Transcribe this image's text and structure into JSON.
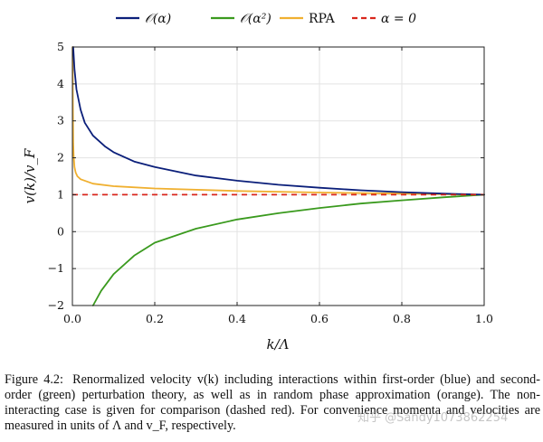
{
  "chart_data": {
    "type": "line",
    "title": "",
    "xlabel": "k/Λ",
    "ylabel": "v(k)/v_F",
    "xlim": [
      0.0,
      1.0
    ],
    "ylim": [
      -2,
      5
    ],
    "xticks": [
      0.0,
      0.2,
      0.4,
      0.6,
      0.8,
      1.0
    ],
    "xtick_labels": [
      "0.0",
      "0.2",
      "0.4",
      "0.6",
      "0.8",
      "1.0"
    ],
    "yticks": [
      -2,
      -1,
      0,
      1,
      2,
      3,
      4,
      5
    ],
    "ytick_labels": [
      "−2",
      "−1",
      "0",
      "1",
      "2",
      "3",
      "4",
      "5"
    ],
    "grid": true,
    "legend_position": "top-center",
    "series": [
      {
        "name": "𝒪(α)",
        "color": "#0b1f7a",
        "style": "solid",
        "x": [
          0.002,
          0.005,
          0.01,
          0.02,
          0.03,
          0.05,
          0.08,
          0.1,
          0.15,
          0.2,
          0.3,
          0.4,
          0.5,
          0.6,
          0.7,
          0.8,
          0.9,
          1.0
        ],
        "y": [
          5.0,
          4.4,
          3.85,
          3.3,
          2.95,
          2.6,
          2.3,
          2.15,
          1.9,
          1.75,
          1.52,
          1.38,
          1.27,
          1.19,
          1.12,
          1.07,
          1.03,
          1.0
        ]
      },
      {
        "name": "𝒪(α²)",
        "color": "#3a9a1e",
        "style": "solid",
        "x": [
          0.05,
          0.07,
          0.1,
          0.15,
          0.2,
          0.3,
          0.4,
          0.5,
          0.6,
          0.7,
          0.8,
          0.9,
          1.0
        ],
        "y": [
          -2.0,
          -1.6,
          -1.15,
          -0.65,
          -0.3,
          0.08,
          0.33,
          0.5,
          0.64,
          0.76,
          0.85,
          0.93,
          1.0
        ]
      },
      {
        "name": "RPA",
        "color": "#f0b030",
        "style": "solid",
        "x": [
          0.0005,
          0.001,
          0.002,
          0.003,
          0.005,
          0.008,
          0.012,
          0.02,
          0.05,
          0.1,
          0.2,
          0.4,
          0.6,
          0.8,
          1.0
        ],
        "y": [
          5.0,
          3.5,
          2.4,
          2.05,
          1.75,
          1.6,
          1.5,
          1.42,
          1.3,
          1.23,
          1.17,
          1.1,
          1.06,
          1.03,
          1.0
        ]
      },
      {
        "name": "α = 0",
        "color": "#d9261c",
        "style": "dashed",
        "x": [
          0.0,
          1.0
        ],
        "y": [
          1.0,
          1.0
        ]
      }
    ]
  },
  "caption": {
    "label": "Figure 4.2:",
    "text": "Renormalized velocity v(k) including interactions within first-order (blue) and second-order (green) perturbation theory, as well as in random phase approximation (orange). The non-interacting case is given for comparison (dashed red). For convenience momenta and velocities are measured in units of Λ and v_F, respectively."
  },
  "watermark": "知乎 @Sandy1073862254"
}
